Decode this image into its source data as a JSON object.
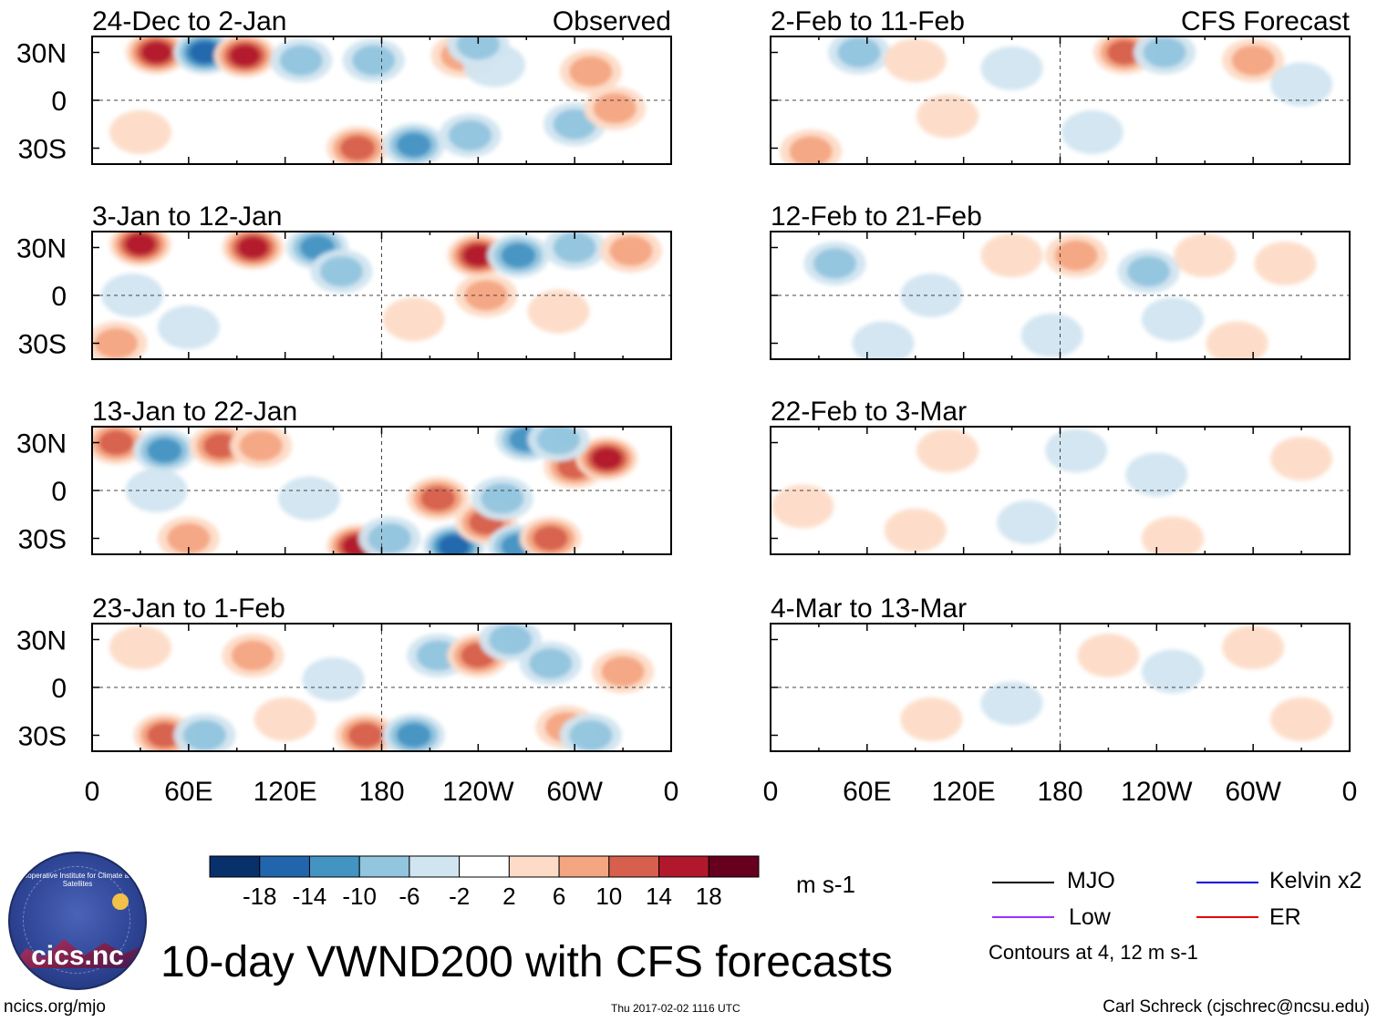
{
  "figure": {
    "title": "10-day VWND200 with CFS forecasts",
    "url": "ncics.org/mjo",
    "timestamp": "Thu 2017-02-02 1116 UTC",
    "credit": "Carl Schreck (cjschrec@ncsu.edu)",
    "observed_label": "Observed",
    "forecast_label": "CFS Forecast"
  },
  "colorbar": {
    "units": "m s-1",
    "tick_labels": [
      "-18",
      "-14",
      "-10",
      "-6",
      "-2",
      "2",
      "6",
      "10",
      "14",
      "18"
    ],
    "colors": [
      "#08306b",
      "#2166ac",
      "#4393c3",
      "#92c5de",
      "#d1e5f0",
      "#ffffff",
      "#fddbc7",
      "#f4a582",
      "#d6604d",
      "#b2182b",
      "#67001f"
    ]
  },
  "legend": {
    "items": [
      {
        "label": "MJO",
        "color": "#000000"
      },
      {
        "label": "Kelvin x2",
        "color": "#0000e0"
      },
      {
        "label": "Low",
        "color": "#9b30ff"
      },
      {
        "label": "ER",
        "color": "#e00000"
      }
    ],
    "contour_note": "Contours at 4, 12 m s-1"
  },
  "logo": {
    "name": "cics.nc",
    "org": "Cooperative Institute for Climate and Satellites"
  },
  "chart_data": {
    "type": "heatmap",
    "variable": "VWND200",
    "x_ticks": [
      "0",
      "60E",
      "120E",
      "180",
      "120W",
      "60W",
      "0"
    ],
    "x_range_deg": [
      0,
      360
    ],
    "y_ticks": [
      "30N",
      "0",
      "30S"
    ],
    "y_range_deg": [
      -40,
      40
    ],
    "panels": [
      {
        "label": "24-Dec to 2-Jan",
        "kind": "observed",
        "column": 0,
        "row": 0,
        "strength": 1.0,
        "anomalies": [
          [
            40,
            30,
            17
          ],
          [
            70,
            30,
            -18
          ],
          [
            95,
            28,
            16
          ],
          [
            130,
            25,
            -8
          ],
          [
            175,
            25,
            -9
          ],
          [
            230,
            28,
            10
          ],
          [
            250,
            22,
            -6
          ],
          [
            310,
            18,
            9
          ],
          [
            300,
            -15,
            -8
          ],
          [
            165,
            -30,
            14
          ],
          [
            200,
            -28,
            -12
          ],
          [
            235,
            -22,
            -9
          ],
          [
            325,
            -5,
            7
          ],
          [
            30,
            -20,
            6
          ],
          [
            240,
            35,
            -8
          ]
        ]
      },
      {
        "label": "2-Feb to 11-Feb",
        "kind": "forecast",
        "column": 1,
        "row": 0,
        "strength": 0.7,
        "anomalies": [
          [
            55,
            30,
            -8
          ],
          [
            90,
            25,
            6
          ],
          [
            150,
            20,
            -5
          ],
          [
            220,
            30,
            14
          ],
          [
            245,
            30,
            -10
          ],
          [
            300,
            25,
            9
          ],
          [
            25,
            -32,
            7
          ],
          [
            200,
            -20,
            -4
          ],
          [
            330,
            10,
            -4
          ],
          [
            110,
            -10,
            4
          ]
        ]
      },
      {
        "label": "3-Jan to 12-Jan",
        "kind": "observed",
        "column": 0,
        "row": 1,
        "strength": 1.0,
        "anomalies": [
          [
            30,
            32,
            16
          ],
          [
            100,
            30,
            16
          ],
          [
            140,
            30,
            -12
          ],
          [
            155,
            15,
            -8
          ],
          [
            240,
            25,
            18
          ],
          [
            265,
            25,
            -12
          ],
          [
            300,
            30,
            -8
          ],
          [
            335,
            28,
            10
          ],
          [
            245,
            0,
            7
          ],
          [
            200,
            -15,
            6
          ],
          [
            60,
            -20,
            -6
          ],
          [
            25,
            0,
            -5
          ],
          [
            290,
            -10,
            6
          ],
          [
            15,
            -30,
            8
          ]
        ]
      },
      {
        "label": "12-Feb to 21-Feb",
        "kind": "forecast",
        "column": 1,
        "row": 1,
        "strength": 0.6,
        "anomalies": [
          [
            40,
            20,
            -9
          ],
          [
            150,
            25,
            4
          ],
          [
            190,
            25,
            7
          ],
          [
            235,
            15,
            -8
          ],
          [
            270,
            25,
            5
          ],
          [
            320,
            20,
            6
          ],
          [
            100,
            0,
            -3
          ],
          [
            70,
            -30,
            -6
          ],
          [
            175,
            -25,
            -5
          ],
          [
            250,
            -15,
            -4
          ],
          [
            290,
            -30,
            5
          ]
        ]
      },
      {
        "label": "13-Jan to 22-Jan",
        "kind": "observed",
        "column": 0,
        "row": 2,
        "strength": 1.0,
        "anomalies": [
          [
            15,
            30,
            12
          ],
          [
            45,
            25,
            -12
          ],
          [
            80,
            28,
            14
          ],
          [
            105,
            28,
            8
          ],
          [
            165,
            -35,
            18
          ],
          [
            185,
            -30,
            -10
          ],
          [
            215,
            -5,
            12
          ],
          [
            225,
            -35,
            -16
          ],
          [
            245,
            -20,
            12
          ],
          [
            255,
            -5,
            -10
          ],
          [
            265,
            -35,
            -14
          ],
          [
            285,
            -30,
            14
          ],
          [
            300,
            15,
            14
          ],
          [
            320,
            20,
            16
          ],
          [
            270,
            32,
            -14
          ],
          [
            290,
            32,
            -10
          ],
          [
            60,
            -30,
            10
          ],
          [
            40,
            0,
            -5
          ],
          [
            135,
            -5,
            -6
          ]
        ]
      },
      {
        "label": "22-Feb to 3-Mar",
        "kind": "forecast",
        "column": 1,
        "row": 2,
        "strength": 0.45,
        "anomalies": [
          [
            110,
            25,
            5
          ],
          [
            190,
            25,
            -4
          ],
          [
            240,
            10,
            -4
          ],
          [
            330,
            20,
            5
          ],
          [
            90,
            -25,
            4
          ],
          [
            160,
            -20,
            -4
          ],
          [
            250,
            -30,
            4
          ],
          [
            20,
            -10,
            3
          ]
        ]
      },
      {
        "label": "23-Jan to 1-Feb",
        "kind": "observed",
        "column": 0,
        "row": 3,
        "strength": 1.0,
        "anomalies": [
          [
            45,
            -30,
            12
          ],
          [
            70,
            -30,
            -8
          ],
          [
            100,
            20,
            10
          ],
          [
            120,
            -20,
            6
          ],
          [
            170,
            -30,
            14
          ],
          [
            200,
            -30,
            -12
          ],
          [
            215,
            20,
            -10
          ],
          [
            240,
            20,
            12
          ],
          [
            260,
            30,
            -8
          ],
          [
            285,
            15,
            -10
          ],
          [
            295,
            -25,
            10
          ],
          [
            310,
            -30,
            -8
          ],
          [
            330,
            10,
            7
          ],
          [
            30,
            25,
            5
          ],
          [
            150,
            5,
            -5
          ]
        ]
      },
      {
        "label": "4-Mar to 13-Mar",
        "kind": "forecast",
        "column": 1,
        "row": 3,
        "strength": 0.35,
        "anomalies": [
          [
            210,
            20,
            5
          ],
          [
            250,
            10,
            -3
          ],
          [
            300,
            25,
            4
          ],
          [
            100,
            -20,
            3
          ],
          [
            150,
            -10,
            -3
          ],
          [
            330,
            -20,
            3
          ]
        ]
      }
    ]
  }
}
